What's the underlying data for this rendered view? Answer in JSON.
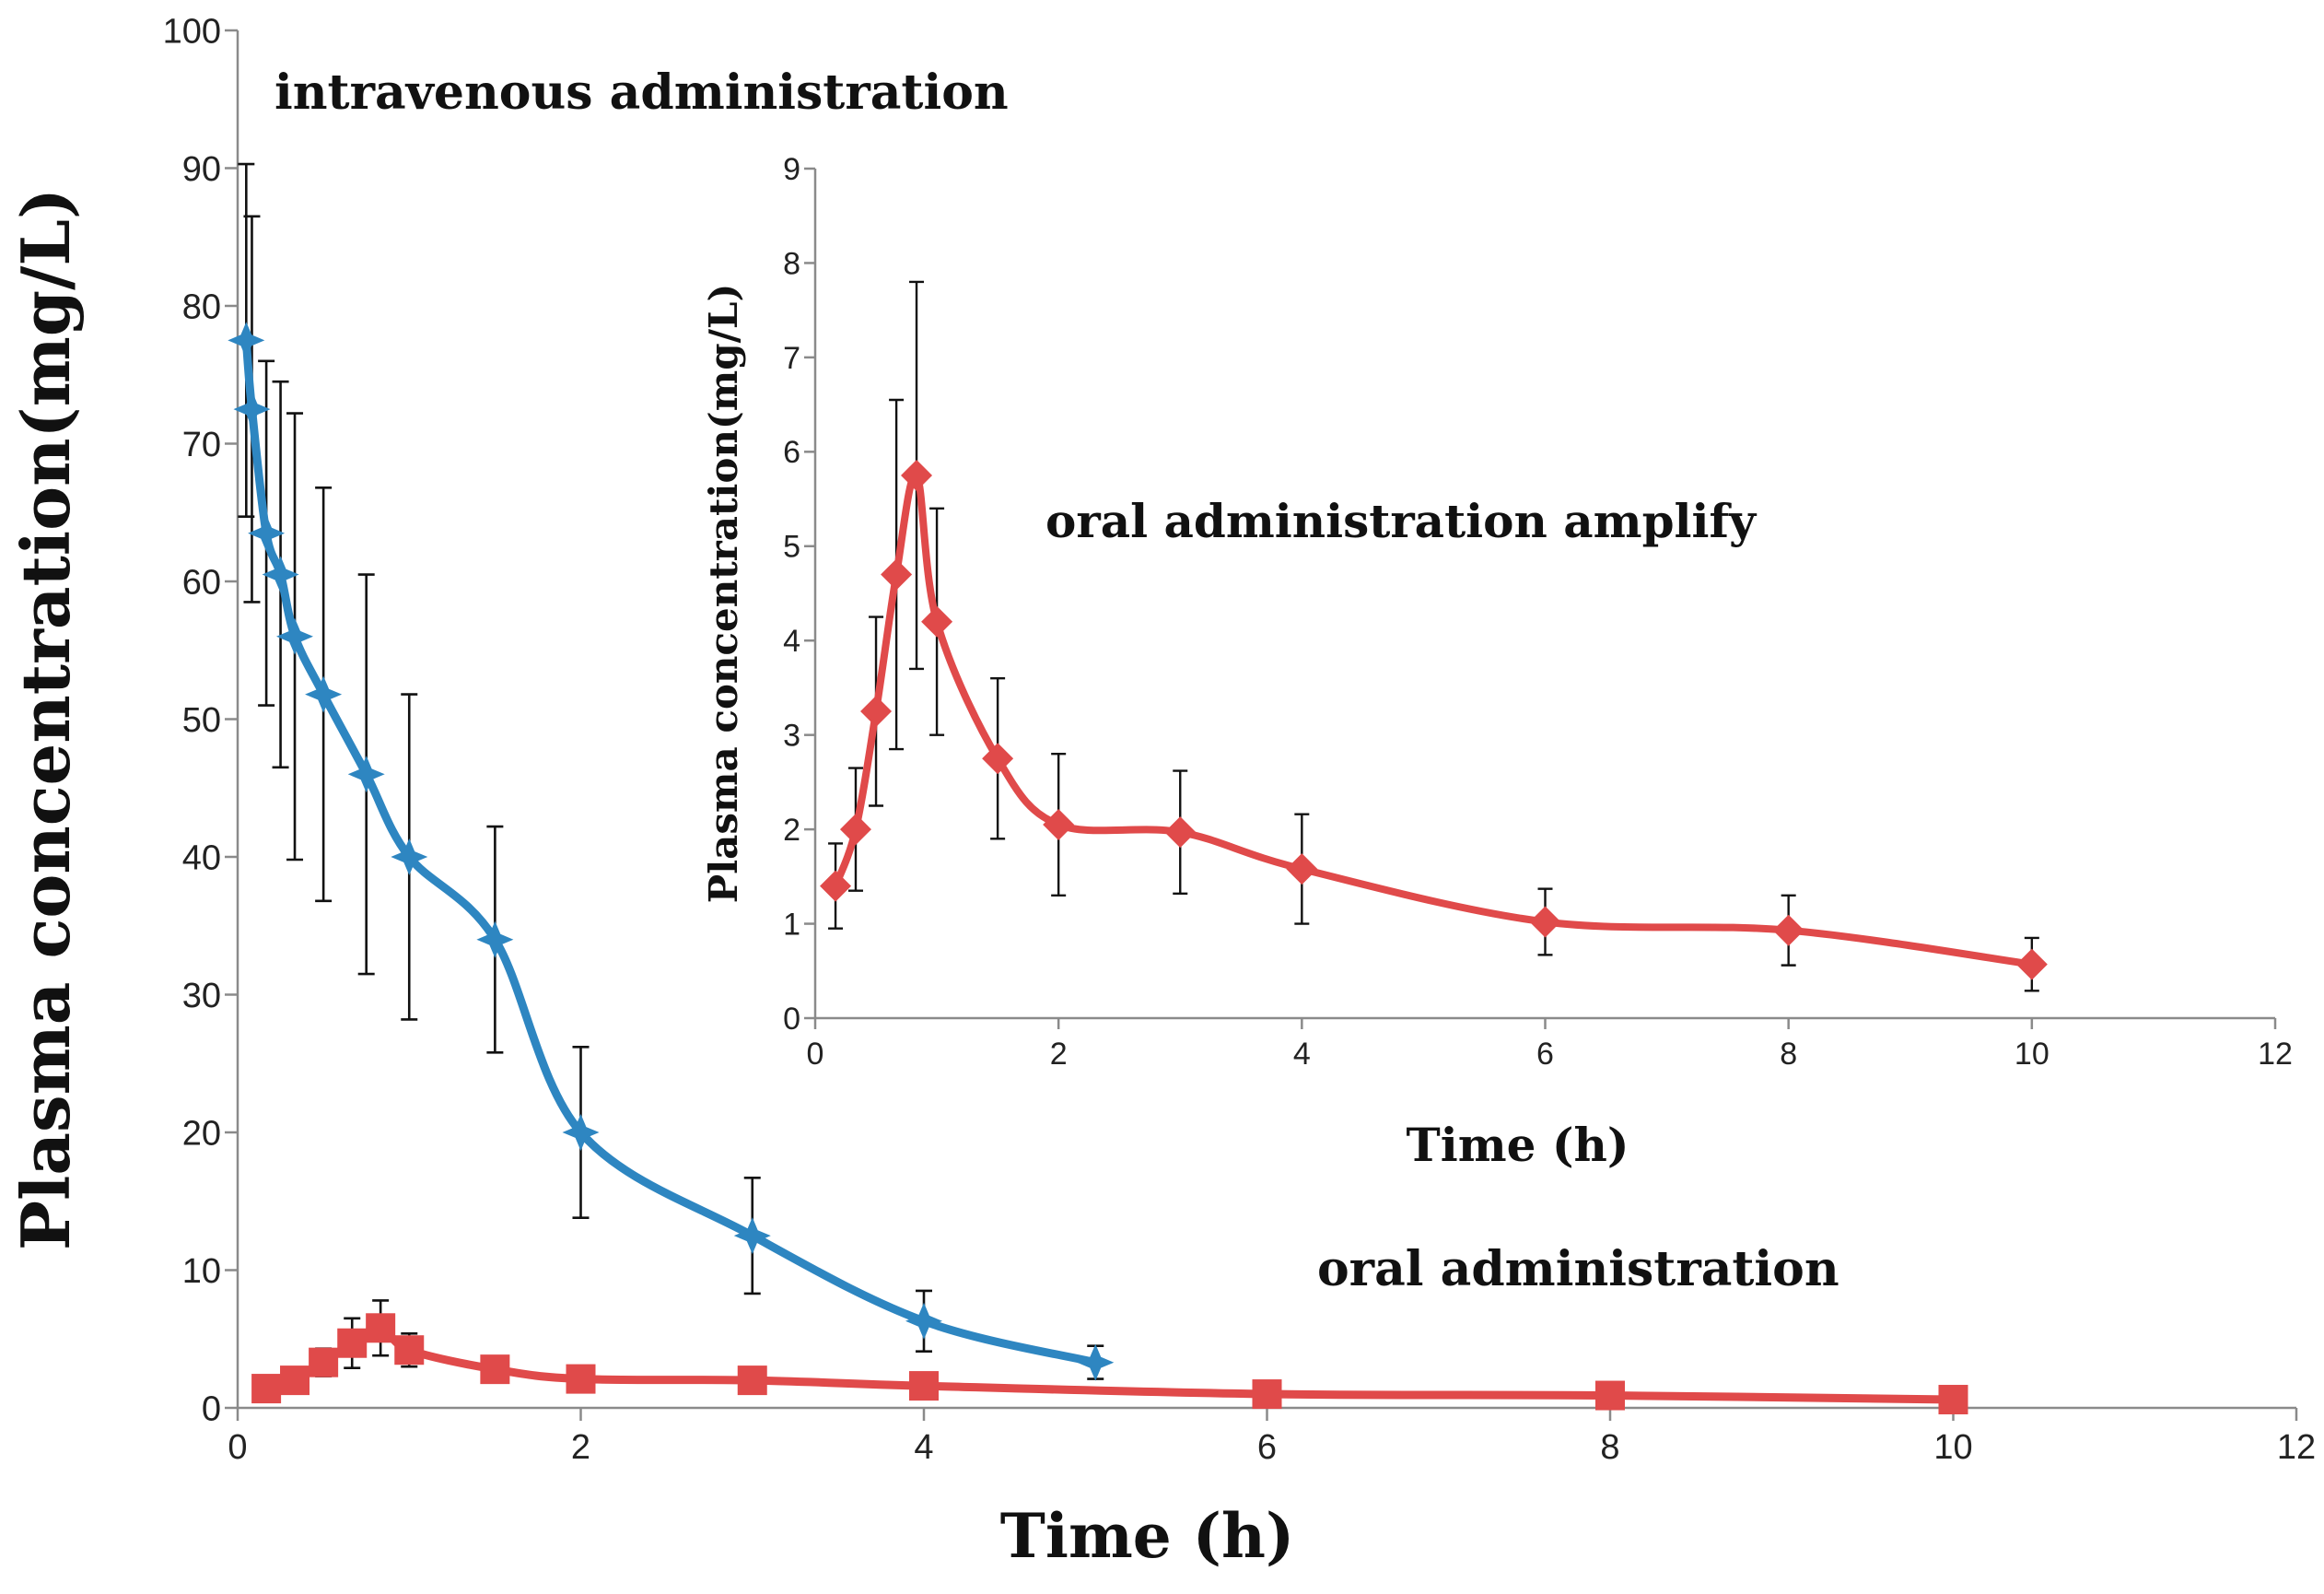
{
  "chart_data": [
    {
      "id": "main",
      "type": "line",
      "title": "",
      "xlabel": "Time (h)",
      "ylabel": "Plasma concentration(mg/L)",
      "xlim": [
        0,
        12
      ],
      "ylim": [
        0,
        100
      ],
      "xticks": [
        0,
        2,
        4,
        6,
        8,
        10,
        12
      ],
      "yticks": [
        0,
        10,
        20,
        30,
        40,
        50,
        60,
        70,
        80,
        90,
        100
      ],
      "grid": false,
      "annotations": [
        "intravenous administration",
        "oral administration"
      ],
      "series": [
        {
          "name": "intravenous administration",
          "color": "#2E86C1",
          "marker": "star",
          "x": [
            0.05,
            0.083,
            0.167,
            0.25,
            0.333,
            0.5,
            0.75,
            1,
            1.5,
            2,
            3,
            4,
            5
          ],
          "y": [
            77.5,
            72.5,
            63.5,
            60.5,
            56.0,
            51.8,
            46.0,
            40.0,
            34.0,
            20.0,
            12.5,
            6.3,
            3.3
          ],
          "err": [
            12.8,
            14.0,
            12.5,
            14.0,
            16.2,
            15.0,
            14.5,
            11.8,
            8.2,
            6.2,
            4.2,
            2.2,
            1.2
          ]
        },
        {
          "name": "oral administration",
          "color": "#E04A4A",
          "marker": "square",
          "x": [
            0.167,
            0.333,
            0.5,
            0.667,
            0.833,
            1,
            1.5,
            2,
            3,
            4,
            6,
            8,
            10
          ],
          "y": [
            1.4,
            2.0,
            3.3,
            4.7,
            5.8,
            4.2,
            2.8,
            2.1,
            2.0,
            1.6,
            1.0,
            0.9,
            0.6
          ],
          "err": [
            0.5,
            0.7,
            1.0,
            1.8,
            2.0,
            1.2,
            0.8,
            0.7,
            0.6,
            0.6,
            0.4,
            0.4,
            0.3
          ]
        }
      ]
    },
    {
      "id": "inset",
      "type": "line",
      "title": "oral administration amplify",
      "xlabel": "Time (h)",
      "ylabel": "Plasma concentration(mg/L)",
      "xlim": [
        0,
        12
      ],
      "ylim": [
        0,
        9
      ],
      "xticks": [
        0,
        2,
        4,
        6,
        8,
        10,
        12
      ],
      "yticks": [
        0,
        1,
        2,
        3,
        4,
        5,
        6,
        7,
        8,
        9
      ],
      "grid": false,
      "series": [
        {
          "name": "oral administration",
          "color": "#E04A4A",
          "marker": "diamond",
          "x": [
            0.167,
            0.333,
            0.5,
            0.667,
            0.833,
            1,
            1.5,
            2,
            3,
            4,
            6,
            8,
            10
          ],
          "y": [
            1.4,
            2.0,
            3.25,
            4.7,
            5.75,
            4.2,
            2.75,
            2.05,
            1.97,
            1.58,
            1.02,
            0.93,
            0.57
          ],
          "err": [
            0.45,
            0.65,
            1.0,
            1.85,
            2.05,
            1.2,
            0.85,
            0.75,
            0.65,
            0.58,
            0.35,
            0.37,
            0.28
          ]
        }
      ]
    }
  ]
}
